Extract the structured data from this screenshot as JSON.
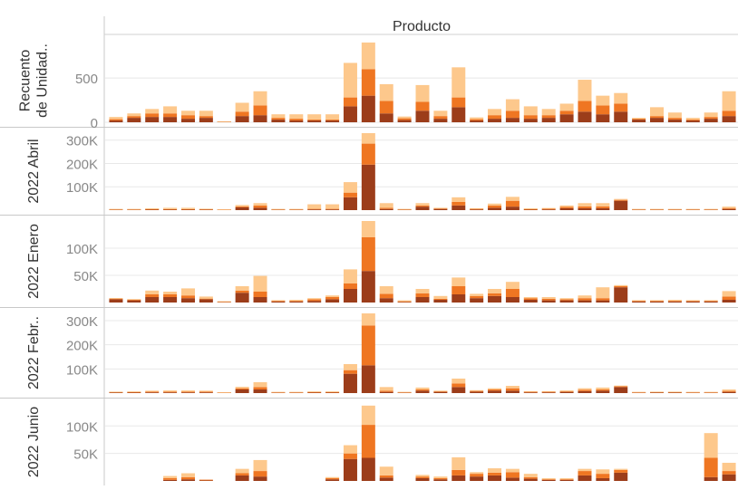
{
  "header": {
    "title": "Producto"
  },
  "colors": {
    "dark": "#9c3d1a",
    "mid": "#ef7622",
    "light": "#fdc88c",
    "grid": "#e8e8e8",
    "axis": "#c8c8c8",
    "text": "#333333",
    "tick": "#888888"
  },
  "chart_data": [
    {
      "type": "bar",
      "stacked": true,
      "row_label": "Recuento de Unidad..",
      "row_label_lines": [
        "Recuento",
        "de Unidad.."
      ],
      "ylim": [
        0,
        930
      ],
      "yticks": [
        0,
        500
      ],
      "ytick_labels": [
        "0",
        "500"
      ],
      "series": [
        {
          "name": "",
          "values": [
            20,
            50,
            60,
            60,
            40,
            50,
            2,
            70,
            80,
            30,
            20,
            20,
            20,
            180,
            300,
            100,
            25,
            130,
            40,
            170,
            20,
            40,
            50,
            40,
            50,
            90,
            120,
            90,
            120,
            30,
            50,
            30,
            20,
            40,
            70
          ]
        },
        {
          "name": "",
          "values": [
            15,
            20,
            40,
            40,
            40,
            20,
            1,
            50,
            110,
            20,
            20,
            10,
            10,
            100,
            300,
            140,
            20,
            100,
            30,
            110,
            15,
            40,
            80,
            40,
            30,
            40,
            120,
            100,
            90,
            10,
            20,
            20,
            10,
            20,
            60
          ]
        },
        {
          "name": "",
          "values": [
            25,
            30,
            50,
            80,
            50,
            60,
            1,
            100,
            160,
            40,
            50,
            60,
            60,
            390,
            300,
            190,
            20,
            190,
            60,
            340,
            20,
            70,
            130,
            100,
            70,
            80,
            240,
            110,
            120,
            10,
            100,
            60,
            20,
            50,
            220
          ]
        }
      ]
    },
    {
      "type": "bar",
      "stacked": true,
      "row_label": "2022 Abril",
      "row_label_lines": [
        "2022 Abril"
      ],
      "ylim": [
        0,
        330000
      ],
      "yticks": [
        100000,
        200000,
        300000
      ],
      "ytick_labels": [
        "100K",
        "200K",
        "300K"
      ],
      "series": [
        {
          "name": "",
          "values": [
            1000,
            1000,
            2000,
            2000,
            2000,
            1500,
            500,
            12000,
            10000,
            1000,
            1000,
            3000,
            3000,
            55000,
            195000,
            5000,
            1000,
            15000,
            5000,
            20000,
            3000,
            10000,
            15000,
            2000,
            3000,
            8000,
            8000,
            8000,
            40000,
            1000,
            1000,
            1000,
            1000,
            1000,
            5000
          ]
        },
        {
          "name": "",
          "values": [
            1000,
            1000,
            2000,
            2000,
            2000,
            1500,
            500,
            4000,
            10000,
            1000,
            1000,
            2000,
            2000,
            20000,
            90000,
            5000,
            1000,
            5000,
            2000,
            15000,
            2000,
            10000,
            25000,
            2000,
            3000,
            6000,
            8000,
            8000,
            4000,
            1000,
            1000,
            1000,
            1000,
            1000,
            4000
          ]
        },
        {
          "name": "",
          "values": [
            3000,
            2000,
            4000,
            6000,
            6000,
            3000,
            500,
            6000,
            10000,
            2000,
            2000,
            20000,
            20000,
            45000,
            45000,
            20000,
            1000,
            10000,
            3000,
            20000,
            3000,
            8000,
            17000,
            4000,
            3000,
            6000,
            14000,
            14000,
            4000,
            1000,
            3000,
            2000,
            2000,
            2000,
            6000
          ]
        }
      ]
    },
    {
      "type": "bar",
      "stacked": true,
      "row_label": "2022 Enero",
      "row_label_lines": [
        "2022 Enero"
      ],
      "ylim": [
        0,
        150000
      ],
      "yticks": [
        50000,
        100000
      ],
      "ytick_labels": [
        "50K",
        "100K"
      ],
      "series": [
        {
          "name": "",
          "values": [
            6000,
            4000,
            10000,
            10000,
            8000,
            6000,
            500,
            18000,
            10000,
            2000,
            2000,
            3000,
            6000,
            25000,
            58000,
            8000,
            1000,
            10000,
            5000,
            15000,
            8000,
            12000,
            10000,
            5000,
            4000,
            4000,
            4000,
            4000,
            28000,
            2000,
            2000,
            2000,
            2000,
            2000,
            5000
          ]
        },
        {
          "name": "",
          "values": [
            1000,
            1000,
            5000,
            5000,
            5000,
            1000,
            500,
            4000,
            10000,
            1000,
            1000,
            3000,
            4000,
            10000,
            62000,
            8000,
            1000,
            7000,
            2000,
            15000,
            4000,
            5000,
            15000,
            3000,
            3000,
            2000,
            4000,
            4000,
            2000,
            1000,
            1000,
            1000,
            1000,
            1000,
            6000
          ]
        },
        {
          "name": "",
          "values": [
            1000,
            1000,
            7000,
            5000,
            13000,
            4000,
            1000,
            8000,
            29000,
            1000,
            2000,
            2000,
            3000,
            26000,
            30000,
            14000,
            2000,
            8000,
            5000,
            16000,
            4000,
            8000,
            13000,
            2000,
            3000,
            2000,
            5000,
            20000,
            2000,
            1000,
            1000,
            2000,
            1000,
            1000,
            10000
          ]
        }
      ]
    },
    {
      "type": "bar",
      "stacked": true,
      "row_label": "2022 Febr..",
      "row_label_lines": [
        "2022 Febr.."
      ],
      "ylim": [
        0,
        330000
      ],
      "yticks": [
        100000,
        200000,
        300000
      ],
      "ytick_labels": [
        "100K",
        "200K",
        "300K"
      ],
      "series": [
        {
          "name": "",
          "values": [
            2000,
            2000,
            3000,
            3000,
            3000,
            3000,
            500,
            15000,
            15000,
            1000,
            1000,
            2000,
            2000,
            80000,
            115000,
            5000,
            1000,
            10000,
            5000,
            25000,
            6000,
            10000,
            10000,
            3000,
            3000,
            5000,
            8000,
            10000,
            25000,
            1000,
            2000,
            2000,
            1000,
            1000,
            5000
          ]
        },
        {
          "name": "",
          "values": [
            1000,
            2000,
            3000,
            3000,
            3000,
            3000,
            500,
            5000,
            10000,
            1000,
            1000,
            2000,
            2000,
            15000,
            165000,
            5000,
            1000,
            5000,
            2000,
            15000,
            3000,
            5000,
            10000,
            2000,
            2000,
            2000,
            6000,
            5000,
            3000,
            1000,
            1000,
            1000,
            1000,
            1000,
            4000
          ]
        },
        {
          "name": "",
          "values": [
            2000,
            2000,
            4000,
            5000,
            5000,
            4000,
            500,
            6000,
            20000,
            1000,
            1000,
            2000,
            3000,
            25000,
            50000,
            15000,
            1000,
            8000,
            3000,
            20000,
            3000,
            5000,
            10000,
            2000,
            2000,
            4000,
            6000,
            8000,
            2000,
            1000,
            2000,
            2000,
            1000,
            1000,
            6000
          ]
        }
      ]
    },
    {
      "type": "bar",
      "stacked": true,
      "row_label": "2022 Junio",
      "row_label_lines": [
        "2022 Junio"
      ],
      "ylim": [
        0,
        140000
      ],
      "yticks": [
        50000,
        100000
      ],
      "ytick_labels": [
        "50K",
        "100K"
      ],
      "series": [
        {
          "name": "",
          "values": [
            0,
            0,
            0,
            2000,
            3000,
            1000,
            0,
            10000,
            8000,
            0,
            0,
            0,
            3000,
            40000,
            42000,
            6000,
            0,
            5000,
            3000,
            10000,
            8000,
            10000,
            6000,
            4000,
            2000,
            2000,
            10000,
            5000,
            15000,
            0,
            0,
            0,
            0,
            7000,
            12000
          ]
        },
        {
          "name": "",
          "values": [
            0,
            0,
            0,
            3000,
            4000,
            1000,
            0,
            4000,
            10000,
            0,
            0,
            0,
            2000,
            10000,
            60000,
            4000,
            0,
            3000,
            2000,
            10000,
            5000,
            5000,
            10000,
            3000,
            1000,
            1000,
            8000,
            8000,
            5000,
            0,
            0,
            0,
            0,
            35000,
            6000
          ]
        },
        {
          "name": "",
          "values": [
            0,
            0,
            0,
            4000,
            7000,
            0,
            0,
            8000,
            20000,
            0,
            0,
            0,
            2000,
            15000,
            35000,
            16000,
            0,
            3000,
            3000,
            23000,
            3000,
            8000,
            6000,
            6000,
            2000,
            2000,
            4000,
            8000,
            2000,
            0,
            0,
            0,
            0,
            45000,
            15000
          ]
        }
      ]
    }
  ]
}
